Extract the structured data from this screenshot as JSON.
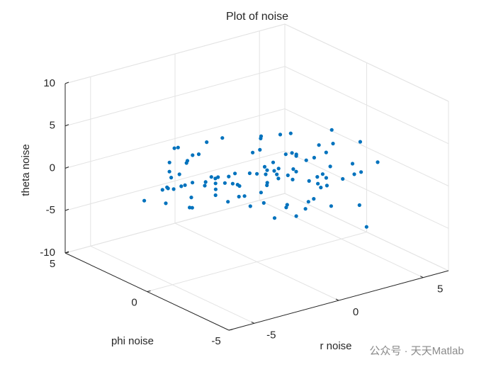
{
  "chart_data": {
    "type": "scatter3",
    "title": "Plot of noise",
    "xlabel": "r noise",
    "ylabel": "phi noise",
    "zlabel": "theta noise",
    "color": "#0072bd",
    "xlim": [
      -6.5,
      6.5
    ],
    "ylim": [
      -5,
      5
    ],
    "zlim": [
      -10,
      10
    ],
    "xticks": [
      -5,
      0,
      5
    ],
    "yticks": [
      -5,
      0,
      5
    ],
    "zticks": [
      -10,
      -5,
      0,
      5,
      10
    ],
    "grid": true,
    "x": [
      0.5,
      -1.2,
      2.1,
      -0.3,
      1.4,
      -2.5,
      0.8,
      -0.9,
      3.1,
      -1.7,
      1.9,
      -0.4,
      -2.8,
      0.2,
      2.6,
      -1.1,
      0.7,
      -3.2,
      1.2,
      -0.6,
      2.4,
      -1.9,
      0.1,
      3.5,
      -2.2,
      1.6,
      -0.8,
      0.4,
      -3.6,
      2.0,
      -1.4,
      1.1,
      -0.2,
      2.9,
      -2.6,
      0.9,
      -1.6,
      1.8,
      -0.5,
      4.1,
      -3.9,
      0.3,
      2.3,
      -1.3,
      1.0,
      -2.1,
      3.3,
      -0.1,
      0.6,
      -2.9,
      1.5,
      -0.7,
      2.7,
      -1.8,
      0.0,
      4.4,
      -4.2,
      1.3,
      -1.0,
      2.2,
      -2.4,
      0.8,
      -3.0,
      3.8,
      -0.9,
      1.7,
      -1.5,
      0.5,
      2.5,
      -3.4,
      4.8,
      -4.6,
      1.9,
      -0.3,
      3.0,
      -2.0,
      0.2,
      -1.2,
      2.8,
      -5.1,
      5.2,
      -0.6,
      1.4,
      -2.7,
      3.6,
      0.7,
      -3.8,
      2.1,
      -1.1,
      0.9,
      -5.5,
      5.6,
      -2.3,
      4.0,
      -4.4,
      3.2,
      -0.4,
      1.6,
      -2.0,
      2.4
    ],
    "y": [
      -0.8,
      1.3,
      0.4,
      -2.1,
      1.7,
      0.6,
      -1.4,
      2.2,
      -0.3,
      -1.0,
      0.9,
      -2.6,
      1.5,
      0.2,
      -1.8,
      2.8,
      -0.5,
      0.7,
      -3.0,
      1.1,
      2.0,
      -0.9,
      -2.3,
      1.2,
      0.1,
      -1.5,
      3.1,
      -0.2,
      -1.2,
      2.5,
      -3.3,
      0.5,
      1.9,
      -0.7,
      2.4,
      -2.8,
      0.3,
      1.6,
      -1.6,
      0.0,
      1.4,
      -3.6,
      -1.1,
      2.9,
      0.8,
      -0.4,
      1.0,
      -2.0,
      3.4,
      -1.9,
      -0.6,
      1.8,
      2.6,
      -2.4,
      0.4,
      -1.3,
      0.9,
      -3.2,
      3.7,
      0.2,
      -2.9,
      2.3,
      1.2,
      -0.1,
      -3.9,
      1.5,
      2.0,
      -2.5,
      -1.7,
      0.6,
      0.3,
      -0.8,
      3.3,
      -3.5,
      2.1,
      1.0,
      -2.2,
      3.8,
      -0.9,
      0.5,
      -1.0,
      4.0,
      -3.8,
      2.7,
      -2.6,
      1.9,
      -1.4,
      -4.1,
      4.2,
      -0.5,
      1.2,
      -1.6,
      -3.0,
      2.8,
      0.8,
      -3.4,
      4.4,
      -4.3,
      3.5,
      -2.1
    ],
    "z": [
      0.3,
      -0.7,
      1.2,
      -1.5,
      0.6,
      -0.2,
      1.8,
      -2.1,
      0.9,
      -0.4,
      -1.1,
      2.3,
      -0.8,
      0.1,
      1.5,
      -2.6,
      0.4,
      -1.3,
      2.0,
      -0.6,
      -1.9,
      0.8,
      2.7,
      -0.3,
      1.1,
      -2.4,
      0.2,
      -1.0,
      1.6,
      -2.9,
      0.5,
      -1.7,
      3.0,
      -0.9,
      -2.2,
      1.3,
      -0.1,
      2.4,
      -3.1,
      0.7,
      -0.5,
      1.9,
      -2.8,
      0.0,
      3.3,
      -1.4,
      -0.2,
      2.1,
      -3.4,
      1.0,
      2.6,
      -2.0,
      -0.6,
      3.5,
      -3.8,
      0.4,
      1.4,
      -1.2,
      -2.5,
      3.8,
      0.9,
      -3.3,
      2.2,
      -1.6,
      0.3,
      -4.1,
      1.7,
      4.0,
      -0.8,
      -2.3,
      1.1,
      -0.4,
      -3.6,
      2.9,
      -1.8,
      4.3,
      -2.7,
      0.6,
      3.1,
      0.8,
      -1.3,
      -4.4,
      2.5,
      -2.2,
      4.6,
      -3.0,
      1.2,
      -0.7,
      -1.5,
      5.0,
      -0.9,
      0.2,
      4.8,
      -3.7,
      2.3,
      -4.5,
      -0.3,
      3.4,
      -5.2,
      6.2
    ]
  },
  "watermark": "公众号 · 天天Matlab"
}
